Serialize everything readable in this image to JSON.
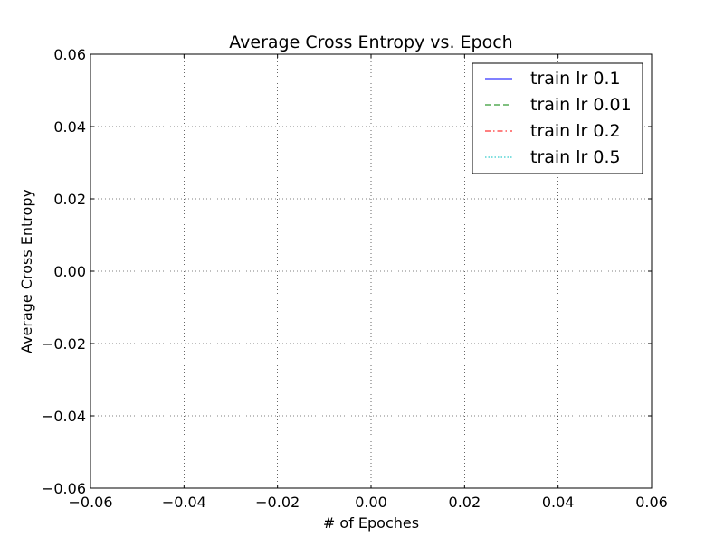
{
  "chart_data": {
    "type": "line",
    "title": "Average Cross Entropy vs. Epoch",
    "xlabel": "# of Epoches",
    "ylabel": "Average Cross Entropy",
    "xlim": [
      -0.06,
      0.06
    ],
    "ylim": [
      -0.06,
      0.06
    ],
    "xticks": [
      -0.06,
      -0.04,
      -0.02,
      0.0,
      0.02,
      0.04,
      0.06
    ],
    "yticks": [
      -0.06,
      -0.04,
      -0.02,
      0.0,
      0.02,
      0.04,
      0.06
    ],
    "xtick_labels": [
      "−0.06",
      "−0.04",
      "−0.02",
      "0.00",
      "0.02",
      "0.04",
      "0.06"
    ],
    "ytick_labels": [
      "−0.06",
      "−0.04",
      "−0.02",
      "0.00",
      "0.02",
      "0.04",
      "0.06"
    ],
    "grid": true,
    "legend_position": "top-right",
    "series": [
      {
        "name": "train lr 0.1",
        "color": "#0000ff",
        "style": "solid",
        "values": []
      },
      {
        "name": "train lr 0.01",
        "color": "#008000",
        "style": "dashed",
        "values": []
      },
      {
        "name": "train lr 0.2",
        "color": "#ff0000",
        "style": "dashdot",
        "values": []
      },
      {
        "name": "train lr 0.5",
        "color": "#00bfbf",
        "style": "dotted",
        "values": []
      }
    ]
  }
}
